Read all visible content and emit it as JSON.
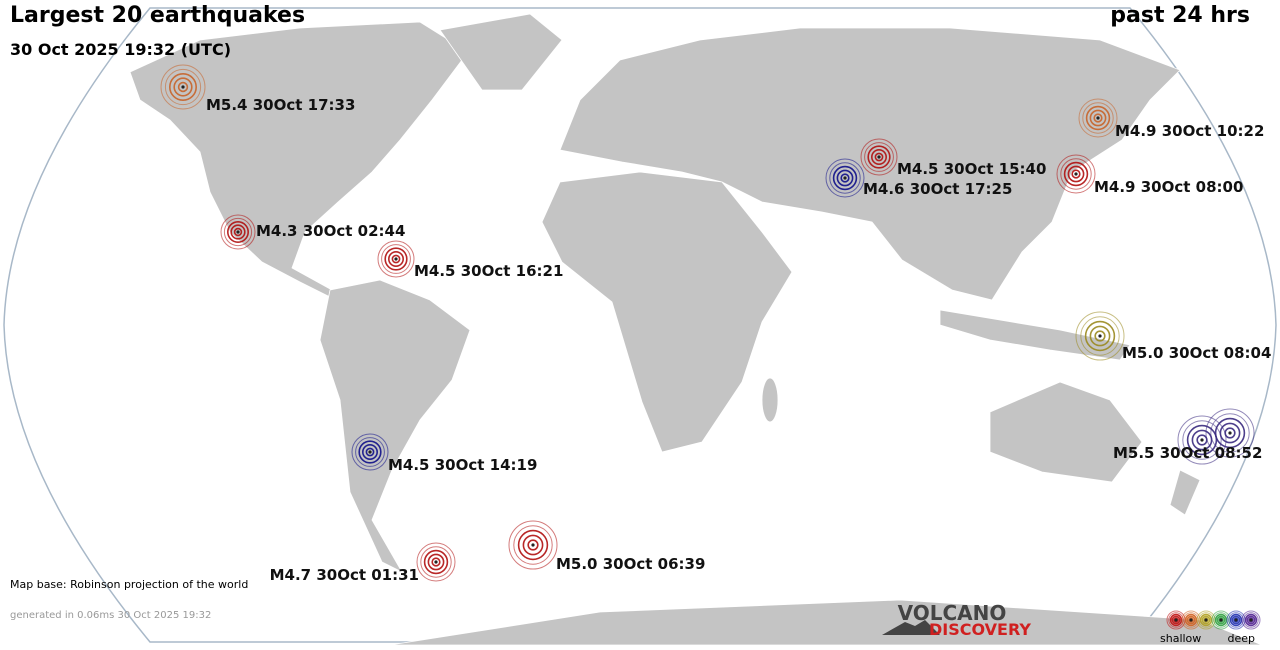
{
  "header": {
    "title": "Largest 20 earthquakes",
    "period": "past 24 hrs",
    "timestamp": "30 Oct 2025 19:32 (UTC)"
  },
  "quakes": [
    {
      "label": "M5.4 30Oct 17:33",
      "color": "#c8642a"
    },
    {
      "label": "M4.9 30Oct 10:22",
      "color": "#c8642a"
    },
    {
      "label": "M4.5 30Oct 15:40",
      "color": "#b01010"
    },
    {
      "label": "M4.6 30Oct 17:25",
      "color": "#10108a"
    },
    {
      "label": "M4.9 30Oct 08:00",
      "color": "#b01010"
    },
    {
      "label": "M4.3 30Oct 02:44",
      "color": "#b01010"
    },
    {
      "label": "M4.5 30Oct 16:21",
      "color": "#b01010"
    },
    {
      "label": "M5.0 30Oct 08:04",
      "color": "#9a8a20"
    },
    {
      "label": "M5.5 30Oct 08:52",
      "color": "#3a2a80"
    },
    {
      "label": "M4.5 30Oct 14:19",
      "color": "#10108a"
    },
    {
      "label": "M4.7 30Oct 01:31",
      "color": "#b01010"
    },
    {
      "label": "M5.0 30Oct 06:39",
      "color": "#b01010"
    }
  ],
  "footer": {
    "map_base": "Map base: Robinson projection of the world",
    "generated": "generated in 0.06ms 30 Oct 2025 19:32"
  },
  "logo": {
    "top": "VOLCANO",
    "bottom": "DISCOVERY"
  },
  "legend": {
    "shallow": "shallow",
    "deep": "deep"
  }
}
